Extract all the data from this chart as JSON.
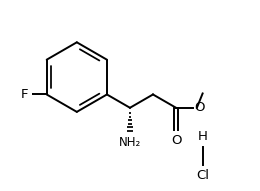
{
  "background_color": "#ffffff",
  "line_color": "#000000",
  "line_width": 1.4,
  "font_size": 8.5,
  "figsize": [
    2.6,
    1.91
  ],
  "dpi": 100,
  "F_label": "F",
  "NH2_label": "NH₂",
  "O_carbonyl_label": "O",
  "O_ester_label": "O",
  "HCl_H": "H",
  "HCl_Cl": "Cl"
}
